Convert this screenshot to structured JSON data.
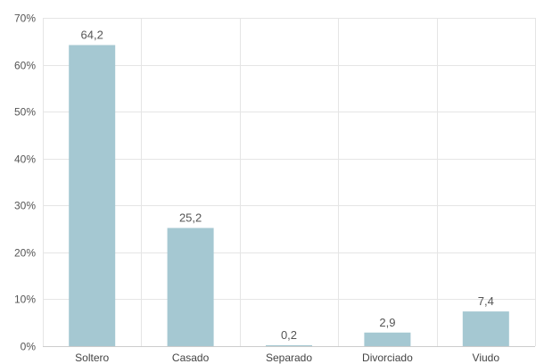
{
  "chart_data": {
    "type": "bar",
    "categories": [
      "Soltero",
      "Casado",
      "Separado",
      "Divorciado",
      "Viudo"
    ],
    "values": [
      64.2,
      25.2,
      0.2,
      2.9,
      7.4
    ],
    "value_labels": [
      "64,2",
      "25,2",
      "0,2",
      "2,9",
      "7,4"
    ],
    "y_ticks": [
      0,
      10,
      20,
      30,
      40,
      50,
      60,
      70
    ],
    "y_tick_labels": [
      "0%",
      "10%",
      "20%",
      "30%",
      "40%",
      "50%",
      "60%",
      "70%"
    ],
    "ylim": [
      0,
      70
    ],
    "title": "",
    "xlabel": "",
    "ylabel": "",
    "grid": true,
    "legend": "none",
    "colors": {
      "bar": "#a5c8d2",
      "grid": "#e5e5e5",
      "axis": "#cccccc"
    }
  }
}
